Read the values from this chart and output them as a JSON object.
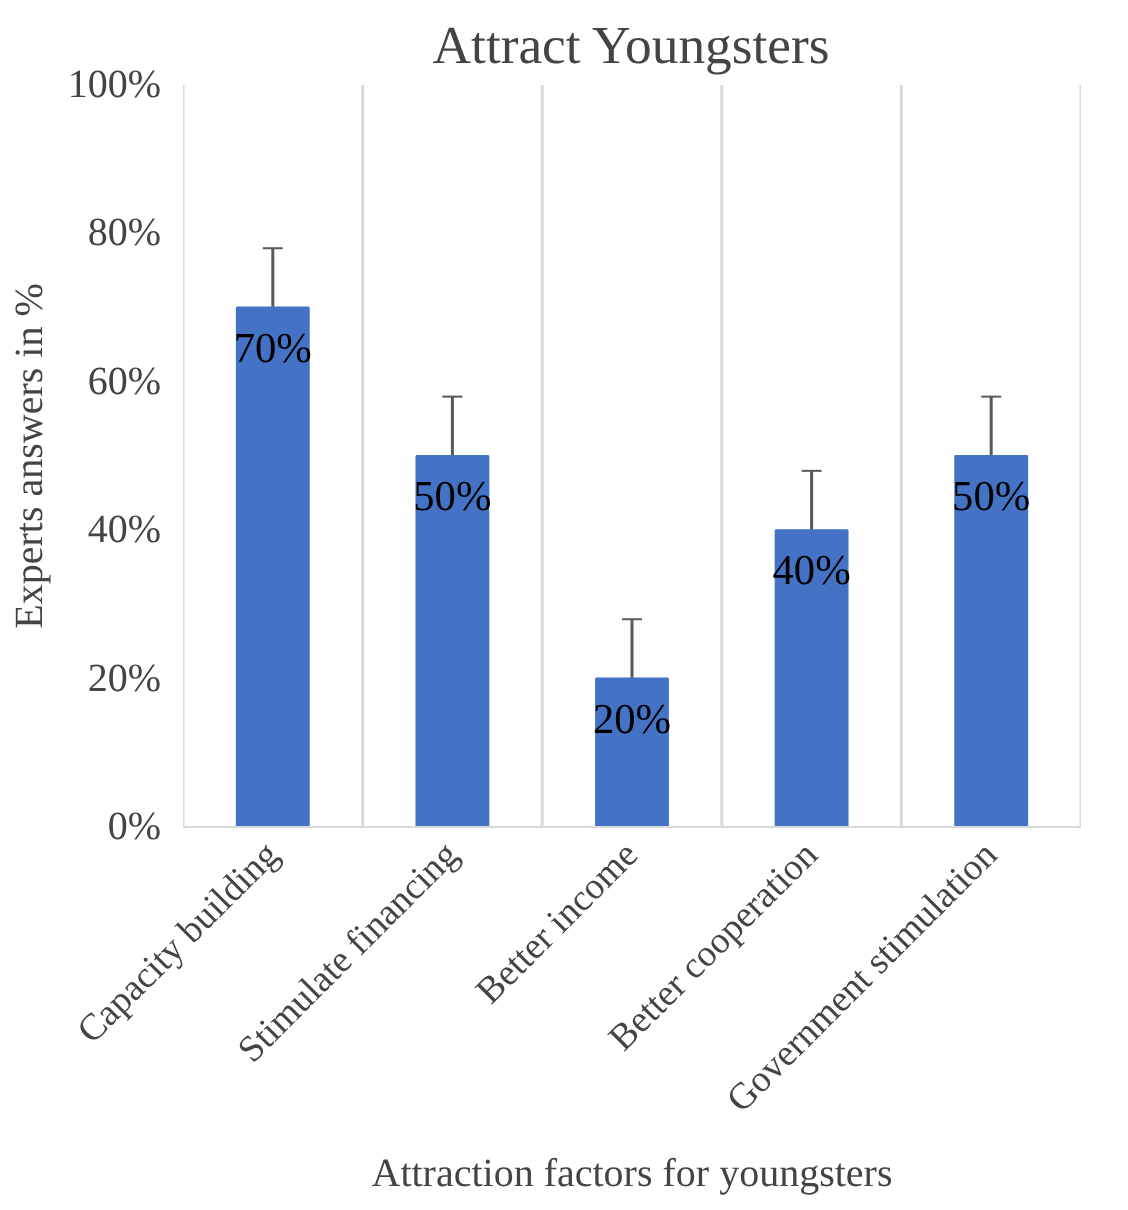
{
  "chart_data": {
    "type": "bar",
    "title": "Attract Youngsters",
    "xlabel": "Attraction factors for youngsters",
    "ylabel": "Experts answers in %",
    "categories": [
      "Capacity building",
      "Stimulate financing",
      "Better income",
      "Better cooperation",
      "Government stimulation"
    ],
    "values": [
      70,
      50,
      20,
      40,
      50
    ],
    "color": "#4472c4",
    "errors": [
      8,
      8,
      8,
      8,
      8
    ],
    "value_labels": [
      "70%",
      "50%",
      "20%",
      "40%",
      "50%"
    ],
    "ylim": [
      0,
      100
    ],
    "yticks": [
      {
        "value": 0,
        "label": "0%"
      },
      {
        "value": 20,
        "label": "20%"
      },
      {
        "value": 40,
        "label": "40%"
      },
      {
        "value": 60,
        "label": "60%"
      },
      {
        "value": 80,
        "label": "80%"
      },
      {
        "value": 100,
        "label": "100%"
      }
    ],
    "grid": "x"
  }
}
